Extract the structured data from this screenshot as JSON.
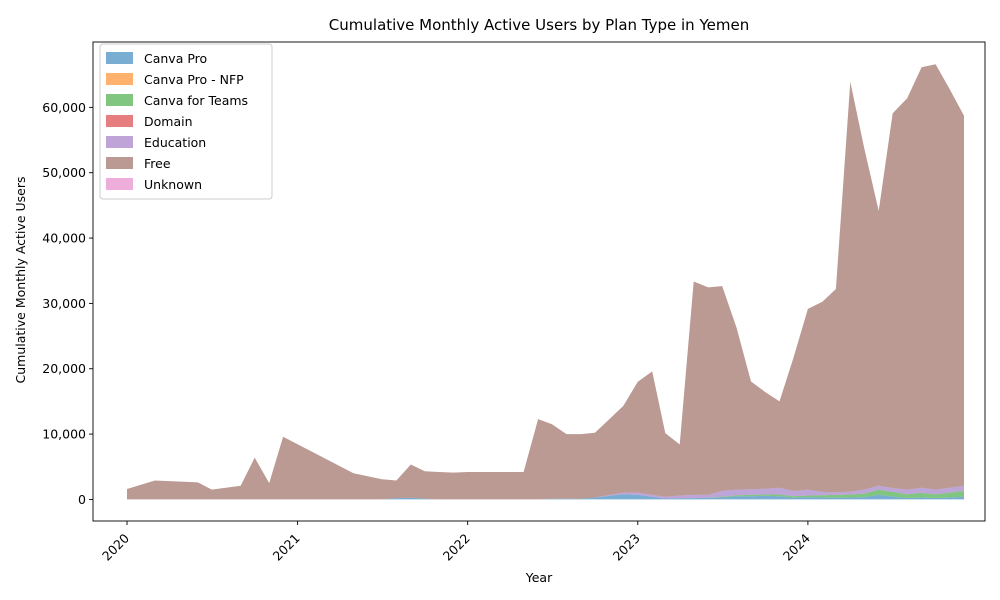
{
  "chart_data": {
    "type": "area",
    "stacked": true,
    "title": "Cumulative Monthly Active Users by Plan Type in Yemen",
    "xlabel": "Year",
    "ylabel": "Cumulative Monthly Active Users",
    "x_ticks": [
      "2020",
      "2021",
      "2022",
      "2023",
      "2024"
    ],
    "y_ticks": [
      "0",
      "10,000",
      "20,000",
      "30,000",
      "40,000",
      "50,000",
      "60,000"
    ],
    "ylim": [
      -3300,
      70000
    ],
    "xlim": [
      "2019-10-20",
      "2025-01-15"
    ],
    "legend_position": "top-left",
    "grid": false,
    "x": [
      "2020-01-01",
      "2020-03-01",
      "2020-06-01",
      "2020-07-01",
      "2020-09-01",
      "2020-10-01",
      "2020-11-01",
      "2020-12-01",
      "2021-05-01",
      "2021-07-01",
      "2021-08-01",
      "2021-09-01",
      "2021-10-01",
      "2021-11-01",
      "2021-12-01",
      "2022-01-01",
      "2022-02-01",
      "2022-03-01",
      "2022-04-01",
      "2022-05-01",
      "2022-06-01",
      "2022-07-01",
      "2022-08-01",
      "2022-09-01",
      "2022-10-01",
      "2022-11-01",
      "2022-12-01",
      "2023-01-01",
      "2023-02-01",
      "2023-03-01",
      "2023-04-01",
      "2023-05-01",
      "2023-06-01",
      "2023-07-01",
      "2023-08-01",
      "2023-09-01",
      "2023-10-01",
      "2023-11-01",
      "2023-12-01",
      "2024-01-01",
      "2024-02-01",
      "2024-03-01",
      "2024-04-01",
      "2024-05-01",
      "2024-06-01",
      "2024-07-01",
      "2024-08-01",
      "2024-09-01",
      "2024-10-01",
      "2024-11-01",
      "2024-12-01"
    ],
    "series": [
      {
        "name": "Canva Pro",
        "color": "#1f77b4",
        "values": [
          0,
          0,
          0,
          0,
          0,
          0,
          0,
          0,
          0,
          0,
          200,
          250,
          100,
          0,
          0,
          0,
          0,
          0,
          0,
          0,
          0,
          100,
          100,
          100,
          300,
          550,
          800,
          700,
          400,
          150,
          200,
          200,
          250,
          300,
          500,
          500,
          550,
          500,
          250,
          350,
          300,
          250,
          300,
          350,
          700,
          450,
          200,
          300,
          200,
          300,
          400
        ]
      },
      {
        "name": "Canva Pro - NFP",
        "color": "#ff7f0e",
        "values": [
          0,
          0,
          0,
          0,
          0,
          0,
          0,
          0,
          0,
          0,
          0,
          0,
          0,
          0,
          0,
          0,
          0,
          0,
          0,
          0,
          0,
          0,
          0,
          0,
          0,
          0,
          0,
          0,
          0,
          0,
          0,
          0,
          0,
          0,
          0,
          0,
          0,
          0,
          0,
          0,
          0,
          0,
          0,
          0,
          0,
          0,
          0,
          0,
          0,
          0,
          0
        ]
      },
      {
        "name": "Canva for Teams",
        "color": "#2ca02c",
        "values": [
          0,
          0,
          0,
          0,
          0,
          0,
          0,
          0,
          0,
          0,
          0,
          0,
          0,
          0,
          0,
          0,
          0,
          0,
          0,
          0,
          0,
          0,
          0,
          0,
          0,
          0,
          0,
          0,
          0,
          0,
          0,
          0,
          0,
          100,
          150,
          200,
          200,
          250,
          250,
          250,
          350,
          450,
          450,
          550,
          800,
          700,
          600,
          700,
          600,
          750,
          900
        ]
      },
      {
        "name": "Domain",
        "color": "#d62728",
        "values": [
          0,
          0,
          0,
          0,
          0,
          0,
          0,
          0,
          0,
          0,
          0,
          0,
          0,
          0,
          0,
          0,
          0,
          0,
          0,
          0,
          0,
          0,
          0,
          0,
          0,
          0,
          0,
          0,
          0,
          0,
          0,
          0,
          0,
          0,
          0,
          0,
          0,
          0,
          0,
          0,
          0,
          0,
          0,
          0,
          0,
          0,
          0,
          0,
          0,
          0,
          0
        ]
      },
      {
        "name": "Education",
        "color": "#9467bd",
        "values": [
          0,
          0,
          0,
          0,
          0,
          0,
          0,
          0,
          0,
          0,
          0,
          0,
          0,
          0,
          0,
          0,
          0,
          0,
          0,
          0,
          0,
          0,
          0,
          0,
          0,
          150,
          250,
          350,
          300,
          250,
          400,
          500,
          450,
          900,
          850,
          850,
          900,
          1050,
          800,
          900,
          500,
          400,
          450,
          600,
          600,
          600,
          700,
          800,
          700,
          750,
          800
        ]
      },
      {
        "name": "Free",
        "color": "#8c564b",
        "values": [
          1600,
          2900,
          2600,
          1500,
          2100,
          6400,
          2500,
          9600,
          4000,
          3100,
          2700,
          5100,
          4200,
          4200,
          4100,
          4200,
          4200,
          4200,
          4200,
          4200,
          12300,
          11400,
          9900,
          9900,
          9900,
          11600,
          13300,
          16950,
          18900,
          9750,
          7800,
          32650,
          31750,
          31350,
          24750,
          16500,
          14800,
          13200,
          20400,
          27650,
          29100,
          31100,
          62700,
          52200,
          42050,
          57350,
          59900,
          64350,
          65100,
          60900,
          56600
        ]
      },
      {
        "name": "Unknown",
        "color": "#e377c2",
        "values": [
          0,
          0,
          0,
          0,
          0,
          0,
          0,
          0,
          0,
          0,
          0,
          0,
          0,
          0,
          0,
          0,
          0,
          0,
          0,
          0,
          0,
          0,
          0,
          0,
          0,
          0,
          0,
          0,
          0,
          0,
          0,
          0,
          0,
          0,
          0,
          0,
          0,
          0,
          0,
          0,
          0,
          0,
          0,
          0,
          0,
          0,
          0,
          0,
          0,
          0,
          0
        ]
      }
    ]
  }
}
